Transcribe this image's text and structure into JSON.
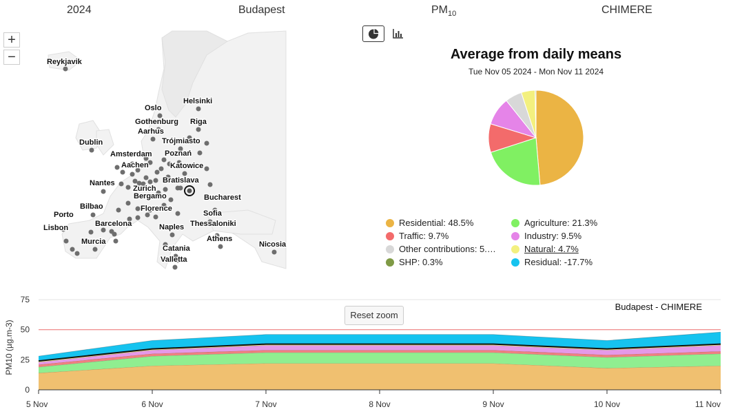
{
  "header": {
    "year": "2024",
    "city": "Budapest",
    "pollutant_main": "PM",
    "pollutant_sub": "10",
    "model": "CHIMERE"
  },
  "map": {
    "zoom_in": "+",
    "zoom_out": "−",
    "cities": [
      "Reykjavik",
      "Helsinki",
      "Oslo",
      "Gothenburg",
      "Riga",
      "Aarhus",
      "Trójmiasto",
      "Dublin",
      "Amsterdam",
      "Poznań",
      "Aachen",
      "Katowice",
      "Nantes",
      "Bratislava",
      "Zurich",
      "Bergamo",
      "Bucharest",
      "Bilbao",
      "Florence",
      "Sofia",
      "Porto",
      "Barcelona",
      "Thessaloniki",
      "Lisbon",
      "Naples",
      "Murcia",
      "Athens",
      "Nicosia",
      "Catania",
      "Valletta"
    ]
  },
  "toolbar": {
    "pie_icon": "pie-chart-icon",
    "bar_icon": "bar-chart-icon"
  },
  "chart_data": [
    {
      "type": "pie",
      "title": "Average from daily means",
      "subtitle": "Tue Nov 05 2024 - Mon Nov 11 2024",
      "slices": [
        {
          "name": "Residential",
          "value": 48.5,
          "color": "#ebb444"
        },
        {
          "name": "Agriculture",
          "value": 21.3,
          "color": "#80f062"
        },
        {
          "name": "Traffic",
          "value": 9.7,
          "color": "#f36b6b"
        },
        {
          "name": "Industry",
          "value": 9.5,
          "color": "#e584e8"
        },
        {
          "name": "Other contributions",
          "value": 5.7,
          "color": "#d8d8d8"
        },
        {
          "name": "Natural",
          "value": 4.7,
          "color": "#f3f07f"
        },
        {
          "name": "SHP",
          "value": 0.3,
          "color": "#7f9a45"
        },
        {
          "name": "Residual",
          "value": -17.7,
          "color": "#16c3ef"
        }
      ],
      "legend": [
        {
          "label": "Residential: 48.5%",
          "color": "#ebb444"
        },
        {
          "label": "Agriculture: 21.3%",
          "color": "#80f062"
        },
        {
          "label": "Traffic: 9.7%",
          "color": "#f36b6b"
        },
        {
          "label": "Industry: 9.5%",
          "color": "#e584e8"
        },
        {
          "label": "Other contributions: 5.…",
          "color": "#d8d8d8"
        },
        {
          "label": "Natural: 4.7%",
          "color": "#f3f07f"
        },
        {
          "label": "SHP: 0.3%",
          "color": "#7f9a45"
        },
        {
          "label": "Residual: -17.7%",
          "color": "#16c3ef"
        }
      ],
      "legend_position": "bottom"
    },
    {
      "type": "area",
      "title": "Budapest - CHIMERE",
      "ylabel": "PM10 (µg.m-3)",
      "ylim": [
        0,
        75
      ],
      "yticks": [
        0,
        25,
        50,
        75
      ],
      "x": [
        "5 Nov",
        "6 Nov",
        "7 Nov",
        "8 Nov",
        "9 Nov",
        "10 Nov",
        "11 Nov"
      ],
      "limit_line": 50,
      "limit_color": "#f08080",
      "total_line_color": "#111111",
      "stacked": true,
      "series": [
        {
          "name": "Residential",
          "color": "#f0c070",
          "values": [
            14,
            20,
            22,
            22,
            22,
            18,
            20
          ]
        },
        {
          "name": "Agriculture",
          "color": "#90ee90",
          "values": [
            5,
            8,
            9,
            9,
            9,
            9,
            10
          ]
        },
        {
          "name": "Traffic",
          "color": "#f08080",
          "values": [
            2,
            2,
            2,
            2,
            2,
            2,
            2
          ]
        },
        {
          "name": "Industry",
          "color": "#e599e8",
          "values": [
            2,
            3,
            4,
            4,
            4,
            4,
            5
          ]
        },
        {
          "name": "Natural",
          "color": "#f3f07f",
          "values": [
            1,
            1,
            1,
            1,
            1,
            1,
            1
          ]
        },
        {
          "name": "Residual",
          "color": "#16c3ef",
          "values": [
            4,
            7,
            8,
            8,
            8,
            7,
            10
          ]
        }
      ]
    }
  ],
  "reset_zoom": "Reset zoom"
}
